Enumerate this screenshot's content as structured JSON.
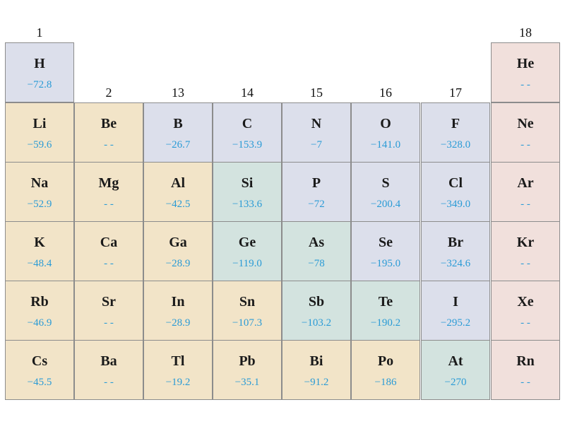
{
  "groups": [
    "1",
    "2",
    "13",
    "14",
    "15",
    "16",
    "17",
    "18"
  ],
  "colors": {
    "blue": "#dcdfeb",
    "tan": "#f2e4c8",
    "green": "#d3e3df",
    "pink": "#f1e0dc",
    "value_text": "#2a9bd6",
    "border": "#8c8c8c"
  },
  "cells": [
    {
      "symbol": "H",
      "value": "−72.8",
      "color": "blue"
    },
    {
      "symbol": "He",
      "value": "- -",
      "color": "pink"
    },
    {
      "symbol": "Li",
      "value": "−59.6",
      "color": "tan"
    },
    {
      "symbol": "Be",
      "value": "- -",
      "color": "tan"
    },
    {
      "symbol": "B",
      "value": "−26.7",
      "color": "blue"
    },
    {
      "symbol": "C",
      "value": "−153.9",
      "color": "blue"
    },
    {
      "symbol": "N",
      "value": "−7",
      "color": "blue"
    },
    {
      "symbol": "O",
      "value": "−141.0",
      "color": "blue"
    },
    {
      "symbol": "F",
      "value": "−328.0",
      "color": "blue"
    },
    {
      "symbol": "Ne",
      "value": "- -",
      "color": "pink"
    },
    {
      "symbol": "Na",
      "value": "−52.9",
      "color": "tan"
    },
    {
      "symbol": "Mg",
      "value": "- -",
      "color": "tan"
    },
    {
      "symbol": "Al",
      "value": "−42.5",
      "color": "tan"
    },
    {
      "symbol": "Si",
      "value": "−133.6",
      "color": "green"
    },
    {
      "symbol": "P",
      "value": "−72",
      "color": "blue"
    },
    {
      "symbol": "S",
      "value": "−200.4",
      "color": "blue"
    },
    {
      "symbol": "Cl",
      "value": "−349.0",
      "color": "blue"
    },
    {
      "symbol": "Ar",
      "value": "- -",
      "color": "pink"
    },
    {
      "symbol": "K",
      "value": "−48.4",
      "color": "tan"
    },
    {
      "symbol": "Ca",
      "value": "- -",
      "color": "tan"
    },
    {
      "symbol": "Ga",
      "value": "−28.9",
      "color": "tan"
    },
    {
      "symbol": "Ge",
      "value": "−119.0",
      "color": "green"
    },
    {
      "symbol": "As",
      "value": "−78",
      "color": "green"
    },
    {
      "symbol": "Se",
      "value": "−195.0",
      "color": "blue"
    },
    {
      "symbol": "Br",
      "value": "−324.6",
      "color": "blue"
    },
    {
      "symbol": "Kr",
      "value": "- -",
      "color": "pink"
    },
    {
      "symbol": "Rb",
      "value": "−46.9",
      "color": "tan"
    },
    {
      "symbol": "Sr",
      "value": "- -",
      "color": "tan"
    },
    {
      "symbol": "In",
      "value": "−28.9",
      "color": "tan"
    },
    {
      "symbol": "Sn",
      "value": "−107.3",
      "color": "tan"
    },
    {
      "symbol": "Sb",
      "value": "−103.2",
      "color": "green"
    },
    {
      "symbol": "Te",
      "value": "−190.2",
      "color": "green"
    },
    {
      "symbol": "I",
      "value": "−295.2",
      "color": "blue"
    },
    {
      "symbol": "Xe",
      "value": "- -",
      "color": "pink"
    },
    {
      "symbol": "Cs",
      "value": "−45.5",
      "color": "tan"
    },
    {
      "symbol": "Ba",
      "value": "- -",
      "color": "tan"
    },
    {
      "symbol": "Tl",
      "value": "−19.2",
      "color": "tan"
    },
    {
      "symbol": "Pb",
      "value": "−35.1",
      "color": "tan"
    },
    {
      "symbol": "Bi",
      "value": "−91.2",
      "color": "tan"
    },
    {
      "symbol": "Po",
      "value": "−186",
      "color": "tan"
    },
    {
      "symbol": "At",
      "value": "−270",
      "color": "green"
    },
    {
      "symbol": "Rn",
      "value": "- -",
      "color": "pink"
    }
  ]
}
